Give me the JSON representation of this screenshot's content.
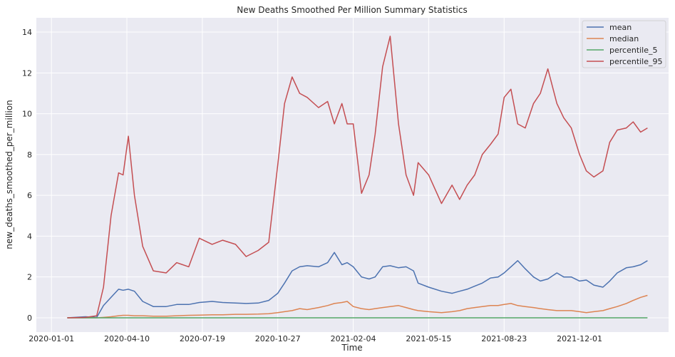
{
  "chart_data": {
    "type": "line",
    "title": "New Deaths Smoothed Per Million Summary Statistics",
    "xlabel": "Time",
    "ylabel": "new_deaths_smoothed_per_million",
    "x_ticks": [
      "2020-01-01",
      "2020-04-10",
      "2020-07-19",
      "2020-10-27",
      "2021-02-04",
      "2021-05-15",
      "2021-08-23",
      "2021-12-01"
    ],
    "y_ticks": [
      0,
      2,
      4,
      6,
      8,
      10,
      12,
      14
    ],
    "xlim": [
      "2019-12-12",
      "2022-03-29"
    ],
    "ylim": [
      -0.7,
      14.7
    ],
    "grid": true,
    "legend_position": "top-right",
    "colors": {
      "background": "#eaeaf2",
      "grid": "#ffffff",
      "mean": "#4c72b0",
      "median": "#dd8452",
      "percentile_5": "#55a868",
      "percentile_95": "#c44e52"
    },
    "x": [
      "2020-01-22",
      "2020-02-15",
      "2020-03-01",
      "2020-03-10",
      "2020-03-20",
      "2020-03-30",
      "2020-04-05",
      "2020-04-12",
      "2020-04-20",
      "2020-05-01",
      "2020-05-15",
      "2020-06-01",
      "2020-06-15",
      "2020-07-01",
      "2020-07-15",
      "2020-08-01",
      "2020-08-15",
      "2020-09-01",
      "2020-09-15",
      "2020-10-01",
      "2020-10-15",
      "2020-10-27",
      "2020-11-05",
      "2020-11-15",
      "2020-11-25",
      "2020-12-05",
      "2020-12-20",
      "2021-01-01",
      "2021-01-10",
      "2021-01-20",
      "2021-01-27",
      "2021-02-04",
      "2021-02-15",
      "2021-02-25",
      "2021-03-05",
      "2021-03-15",
      "2021-03-25",
      "2021-04-05",
      "2021-04-15",
      "2021-04-25",
      "2021-05-01",
      "2021-05-15",
      "2021-06-01",
      "2021-06-15",
      "2021-06-25",
      "2021-07-05",
      "2021-07-15",
      "2021-07-25",
      "2021-08-05",
      "2021-08-15",
      "2021-08-23",
      "2021-09-01",
      "2021-09-10",
      "2021-09-20",
      "2021-10-01",
      "2021-10-10",
      "2021-10-20",
      "2021-11-01",
      "2021-11-10",
      "2021-11-20",
      "2021-12-01",
      "2021-12-10",
      "2021-12-20",
      "2022-01-01",
      "2022-01-10",
      "2022-01-20",
      "2022-02-01",
      "2022-02-10",
      "2022-02-20",
      "2022-03-01"
    ],
    "series": [
      {
        "name": "mean",
        "values": [
          0.0,
          0.05,
          0.02,
          0.6,
          1.0,
          1.4,
          1.35,
          1.4,
          1.3,
          0.8,
          0.55,
          0.55,
          0.65,
          0.65,
          0.75,
          0.8,
          0.75,
          0.72,
          0.7,
          0.72,
          0.85,
          1.2,
          1.7,
          2.3,
          2.5,
          2.55,
          2.5,
          2.7,
          3.2,
          2.6,
          2.7,
          2.5,
          2.0,
          1.9,
          2.0,
          2.5,
          2.55,
          2.45,
          2.5,
          2.3,
          1.7,
          1.5,
          1.3,
          1.2,
          1.3,
          1.4,
          1.55,
          1.7,
          1.95,
          2.0,
          2.2,
          2.5,
          2.8,
          2.4,
          2.0,
          1.8,
          1.9,
          2.2,
          2.0,
          2.0,
          1.8,
          1.85,
          1.6,
          1.5,
          1.8,
          2.2,
          2.45,
          2.5,
          2.6,
          2.8
        ]
      },
      {
        "name": "median",
        "values": [
          0.0,
          0.0,
          0.0,
          0.02,
          0.05,
          0.1,
          0.12,
          0.12,
          0.1,
          0.1,
          0.08,
          0.08,
          0.1,
          0.12,
          0.13,
          0.15,
          0.15,
          0.17,
          0.17,
          0.18,
          0.2,
          0.25,
          0.3,
          0.35,
          0.45,
          0.4,
          0.5,
          0.6,
          0.7,
          0.75,
          0.8,
          0.55,
          0.45,
          0.4,
          0.45,
          0.5,
          0.55,
          0.6,
          0.5,
          0.4,
          0.35,
          0.3,
          0.25,
          0.3,
          0.35,
          0.45,
          0.5,
          0.55,
          0.6,
          0.6,
          0.65,
          0.7,
          0.6,
          0.55,
          0.5,
          0.45,
          0.4,
          0.35,
          0.35,
          0.35,
          0.3,
          0.25,
          0.3,
          0.35,
          0.45,
          0.55,
          0.7,
          0.85,
          1.0,
          1.1
        ]
      },
      {
        "name": "percentile_5",
        "values": [
          0,
          0,
          0,
          0,
          0,
          0,
          0,
          0,
          0,
          0,
          0,
          0,
          0,
          0,
          0,
          0,
          0,
          0,
          0,
          0,
          0,
          0,
          0,
          0,
          0,
          0,
          0,
          0,
          0,
          0,
          0,
          0,
          0,
          0,
          0,
          0,
          0,
          0,
          0,
          0,
          0,
          0,
          0,
          0,
          0,
          0,
          0,
          0,
          0,
          0,
          0,
          0,
          0,
          0,
          0,
          0,
          0,
          0,
          0,
          0,
          0,
          0,
          0,
          0,
          0,
          0,
          0,
          0,
          0,
          0
        ]
      },
      {
        "name": "percentile_95",
        "values": [
          0.0,
          0.02,
          0.1,
          1.5,
          5.0,
          7.1,
          7.0,
          8.9,
          6.0,
          3.5,
          2.3,
          2.2,
          2.7,
          2.5,
          3.9,
          3.6,
          3.8,
          3.6,
          3.0,
          3.3,
          3.7,
          7.5,
          10.5,
          11.8,
          11.0,
          10.8,
          10.3,
          10.6,
          9.5,
          10.5,
          9.5,
          9.5,
          6.1,
          7.0,
          9.0,
          12.3,
          13.8,
          9.5,
          7.0,
          6.0,
          7.6,
          7.0,
          5.6,
          6.5,
          5.8,
          6.5,
          7.0,
          8.0,
          8.5,
          9.0,
          10.8,
          11.2,
          9.5,
          9.3,
          10.5,
          11.0,
          12.2,
          10.5,
          9.8,
          9.3,
          8.0,
          7.2,
          6.9,
          7.2,
          8.6,
          9.2,
          9.3,
          9.6,
          9.1,
          9.3
        ]
      }
    ]
  }
}
